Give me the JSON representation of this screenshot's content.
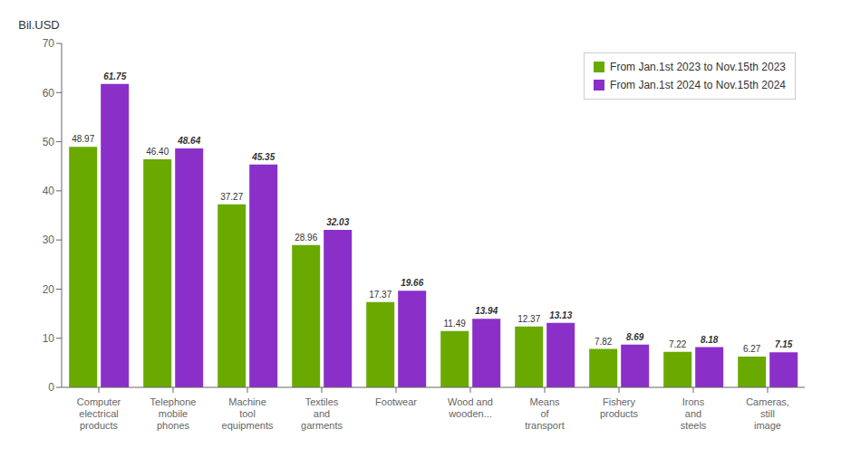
{
  "chart_data": {
    "type": "bar",
    "ylabel": "Bil.USD",
    "categories": [
      "Computer\nelectrical\nproducts",
      "Telephone\nmobile\nphones",
      "Machine\ntool\nequipments",
      "Textiles\nand\ngarments",
      "Footwear",
      "Wood and\nwooden...",
      "Means\nof\ntransport",
      "Fishery\nproducts",
      "Irons\nand\nsteels",
      "Cameras,\nstill\nimage"
    ],
    "series": [
      {
        "name": "From Jan.1st 2023 to Nov.15th 2023",
        "color": "#6aaa00",
        "values": [
          48.97,
          46.4,
          37.27,
          28.96,
          17.37,
          11.49,
          12.37,
          7.82,
          7.22,
          6.27
        ],
        "value_labels": [
          "48.97",
          "46.40",
          "37.27",
          "28.96",
          "17.37",
          "11.49",
          "12.37",
          "7.82",
          "7.22",
          "6.27"
        ]
      },
      {
        "name": "From Jan.1st 2024 to Nov.15th 2024",
        "color": "#8b2fc9",
        "values": [
          61.75,
          48.64,
          45.35,
          32.03,
          19.66,
          13.94,
          13.13,
          8.69,
          8.18,
          7.15
        ],
        "value_labels": [
          "61.75",
          "48.64",
          "45.35",
          "32.03",
          "19.66",
          "13.94",
          "13.13",
          "8.69",
          "8.18",
          "7.15"
        ]
      }
    ],
    "ylim": [
      0,
      70
    ],
    "yticks": [
      0,
      10,
      20,
      30,
      40,
      50,
      60,
      70
    ],
    "grid": false,
    "legend": "upper right",
    "data_labels": true
  }
}
